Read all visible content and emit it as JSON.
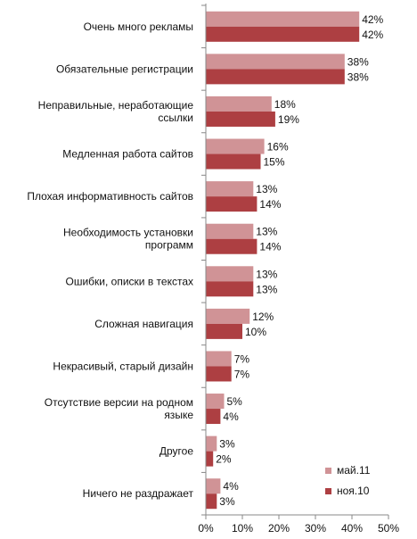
{
  "chart_data": {
    "type": "bar",
    "orientation": "horizontal",
    "categories": [
      [
        "Очень  много рекламы"
      ],
      [
        "Обязательные  регистрации"
      ],
      [
        "Неправильные,  неработающие",
        "ссылки"
      ],
      [
        "Медленная  работа сайтов"
      ],
      [
        "Плохая информативность сайтов"
      ],
      [
        "Необходимость установки",
        "программ"
      ],
      [
        "Ошибки,  описки в текстах"
      ],
      [
        "Сложная навигация"
      ],
      [
        "Некрасивый,  старый дизайн"
      ],
      [
        "Отсутствие версии на родном",
        "языке"
      ],
      [
        "Другое"
      ],
      [
        "Ничего не раздражает"
      ]
    ],
    "series": [
      {
        "name": "май.11",
        "color": "#d09396",
        "values": [
          42,
          38,
          18,
          16,
          13,
          13,
          13,
          12,
          7,
          5,
          3,
          4
        ]
      },
      {
        "name": "ноя.10",
        "color": "#ad3f42",
        "values": [
          42,
          38,
          19,
          15,
          14,
          14,
          13,
          10,
          7,
          4,
          2,
          3
        ]
      }
    ],
    "value_suffix": "%",
    "xlim": [
      0,
      50
    ],
    "xticks": [
      "0%",
      "10%",
      "20%",
      "30%",
      "40%",
      "50%"
    ],
    "grid": false,
    "legend_position": "bottom-right"
  }
}
